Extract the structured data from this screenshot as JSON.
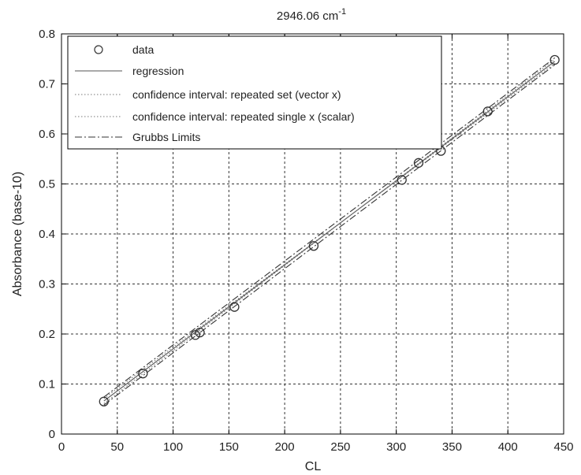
{
  "chart_data": {
    "type": "scatter",
    "title": "2946.06 cm",
    "title_superscript": "-1",
    "xlabel": "CL",
    "ylabel": "Absorbance (base-10)",
    "xlim": [
      0,
      450
    ],
    "ylim": [
      0,
      0.8
    ],
    "x_ticks": [
      "0",
      "50",
      "100",
      "150",
      "200",
      "250",
      "300",
      "350",
      "400",
      "450"
    ],
    "y_ticks": [
      "0",
      "0.1",
      "0.2",
      "0.3",
      "0.4",
      "0.5",
      "0.6",
      "0.7",
      "0.8"
    ],
    "grid": true,
    "legend_position": "top-left",
    "series": [
      {
        "name": "data",
        "kind": "markers",
        "x": [
          38,
          73,
          120,
          124,
          155,
          226,
          305,
          320,
          340,
          382,
          442
        ],
        "y": [
          0.065,
          0.121,
          0.198,
          0.203,
          0.254,
          0.376,
          0.508,
          0.542,
          0.566,
          0.645,
          0.748
        ]
      },
      {
        "name": "regression",
        "kind": "line",
        "style": "solid",
        "x": [
          38,
          442
        ],
        "y": [
          0.066,
          0.745
        ]
      },
      {
        "name": "confidence interval: repeated set (vector x)",
        "kind": "line",
        "style": "dotted",
        "x": [
          38,
          442
        ],
        "y": [
          0.071,
          0.741
        ]
      },
      {
        "name": "confidence interval: repeated single x (scalar)",
        "kind": "line",
        "style": "dotted",
        "x": [
          38,
          442
        ],
        "y": [
          0.061,
          0.749
        ]
      },
      {
        "name": "Grubbs Limits",
        "kind": "line",
        "style": "dashdot",
        "x": [
          38,
          442
        ],
        "y": [
          0.058,
          0.738
        ]
      },
      {
        "name": "Grubbs Limits",
        "kind": "line",
        "style": "dashdot",
        "x": [
          38,
          442
        ],
        "y": [
          0.074,
          0.752
        ]
      }
    ],
    "legend_entries": [
      {
        "label": "data",
        "style": "marker"
      },
      {
        "label": "regression",
        "style": "solid"
      },
      {
        "label": "confidence interval: repeated set (vector x)",
        "style": "dotted"
      },
      {
        "label": "confidence interval: repeated single x (scalar)",
        "style": "dotted"
      },
      {
        "label": "Grubbs Limits",
        "style": "dashdot"
      }
    ],
    "line_color": "#444444",
    "grid_color": "#333333"
  }
}
